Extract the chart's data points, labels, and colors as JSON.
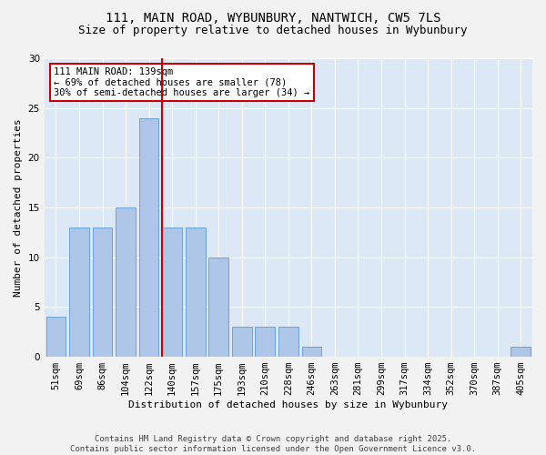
{
  "title_line1": "111, MAIN ROAD, WYBUNBURY, NANTWICH, CW5 7LS",
  "title_line2": "Size of property relative to detached houses in Wybunbury",
  "xlabel": "Distribution of detached houses by size in Wybunbury",
  "ylabel": "Number of detached properties",
  "categories": [
    "51sqm",
    "69sqm",
    "86sqm",
    "104sqm",
    "122sqm",
    "140sqm",
    "157sqm",
    "175sqm",
    "193sqm",
    "210sqm",
    "228sqm",
    "246sqm",
    "263sqm",
    "281sqm",
    "299sqm",
    "317sqm",
    "334sqm",
    "352sqm",
    "370sqm",
    "387sqm",
    "405sqm"
  ],
  "values": [
    4,
    13,
    13,
    15,
    24,
    13,
    13,
    10,
    3,
    3,
    3,
    1,
    0,
    0,
    0,
    0,
    0,
    0,
    0,
    0,
    1
  ],
  "bar_color": "#aec6e8",
  "bar_edgecolor": "#5b9bd5",
  "highlight_x_label": "140sqm",
  "highlight_line_color": "#cc0000",
  "annotation_text": "111 MAIN ROAD: 139sqm\n← 69% of detached houses are smaller (78)\n30% of semi-detached houses are larger (34) →",
  "annotation_box_color": "#ffffff",
  "annotation_box_edgecolor": "#cc0000",
  "ylim": [
    0,
    30
  ],
  "yticks": [
    0,
    5,
    10,
    15,
    20,
    25,
    30
  ],
  "background_color": "#dce8f5",
  "fig_background_color": "#f2f2f2",
  "footer_text": "Contains HM Land Registry data © Crown copyright and database right 2025.\nContains public sector information licensed under the Open Government Licence v3.0.",
  "title_fontsize": 10,
  "subtitle_fontsize": 9,
  "axis_label_fontsize": 8,
  "tick_fontsize": 7.5,
  "annotation_fontsize": 7.5,
  "footer_fontsize": 6.5
}
